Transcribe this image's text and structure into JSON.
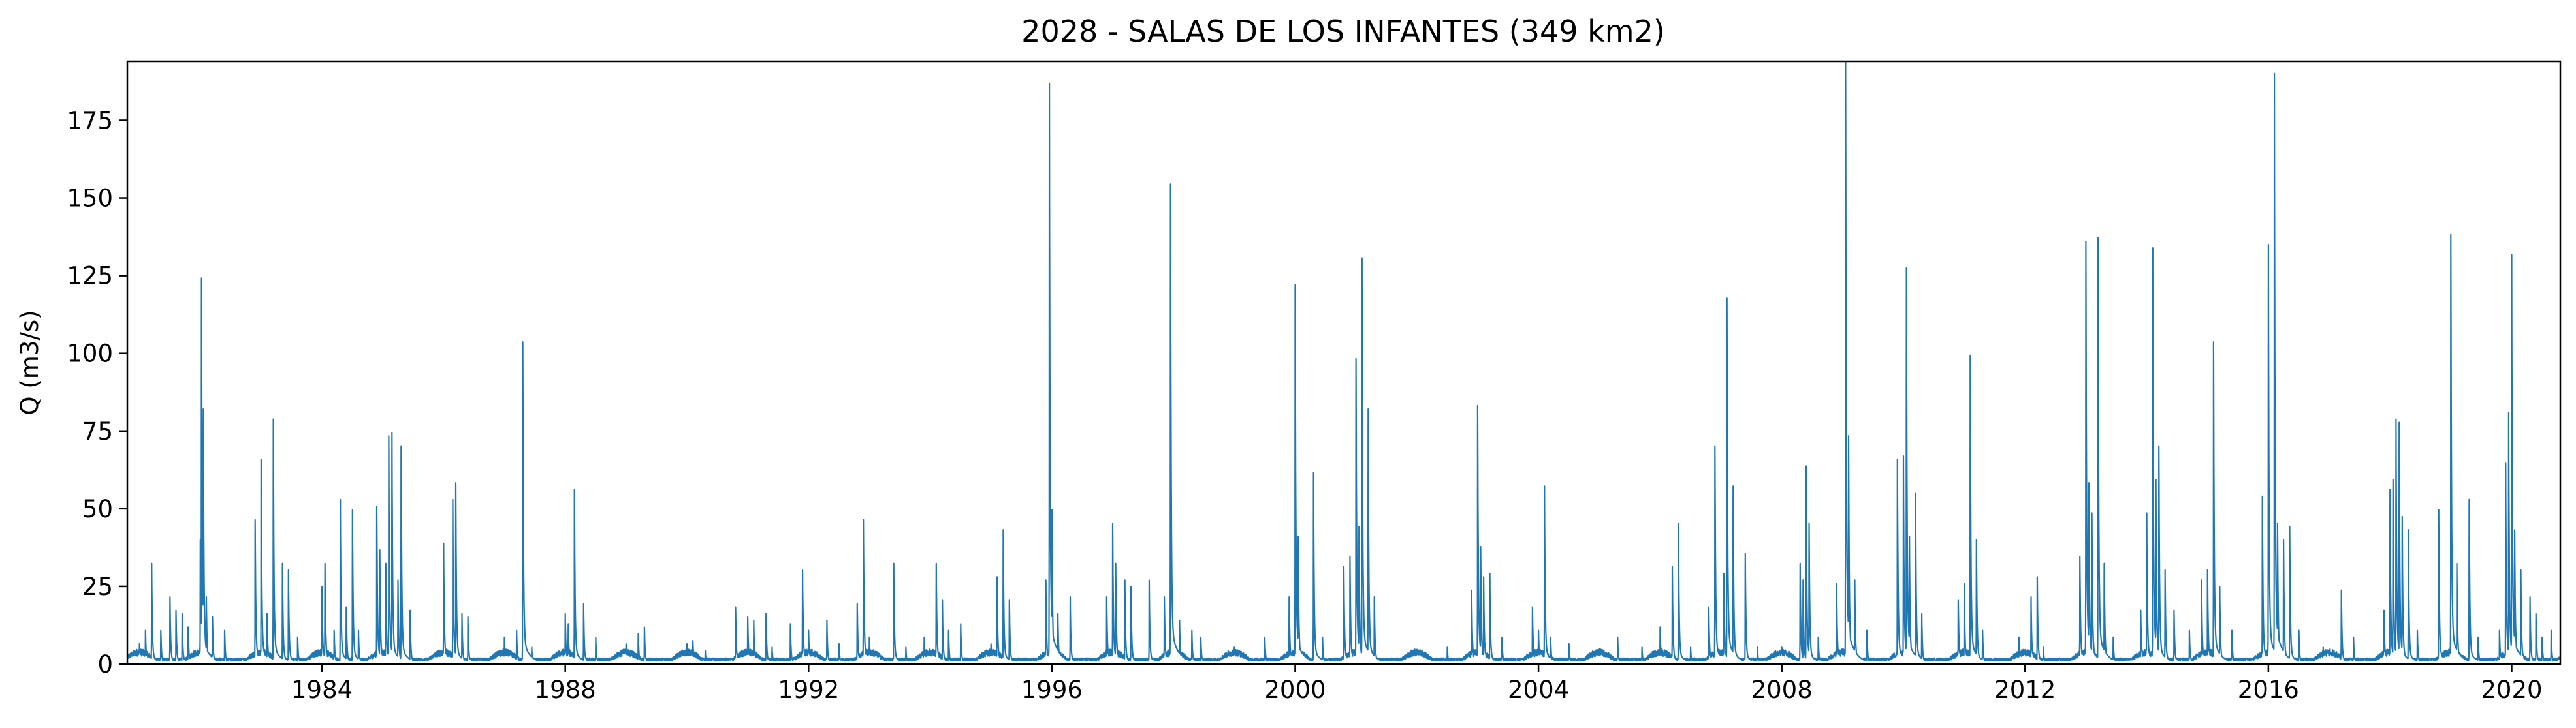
{
  "chart_data": {
    "type": "line",
    "title": "2028 - SALAS DE LOS INFANTES (349 km2)",
    "xlabel": "",
    "ylabel": "Q (m3/s)",
    "xlim": [
      1980.8,
      2020.8
    ],
    "ylim": [
      0,
      194
    ],
    "xticks": [
      1984,
      1988,
      1992,
      1996,
      2000,
      2004,
      2008,
      2012,
      2016,
      2020
    ],
    "yticks": [
      0,
      25,
      50,
      75,
      100,
      125,
      150,
      175
    ],
    "grid": false,
    "legend": "none",
    "series_color": "#1f77b4",
    "series": [
      {
        "baseflow": 1.5,
        "peaks": [
          [
            1981.0,
            6
          ],
          [
            1981.1,
            10
          ],
          [
            1981.2,
            30
          ],
          [
            1981.35,
            10
          ],
          [
            1981.5,
            20
          ],
          [
            1981.6,
            16
          ],
          [
            1981.7,
            15
          ],
          [
            1981.8,
            11
          ],
          [
            1982.0,
            37
          ],
          [
            1982.02,
            115
          ],
          [
            1982.05,
            76
          ],
          [
            1982.1,
            20
          ],
          [
            1982.2,
            14
          ],
          [
            1982.4,
            10
          ],
          [
            1982.9,
            43
          ],
          [
            1983.0,
            61
          ],
          [
            1983.1,
            15
          ],
          [
            1983.2,
            73
          ],
          [
            1983.35,
            30
          ],
          [
            1983.45,
            28
          ],
          [
            1983.6,
            8
          ],
          [
            1984.0,
            23
          ],
          [
            1984.05,
            30
          ],
          [
            1984.2,
            10
          ],
          [
            1984.3,
            49
          ],
          [
            1984.4,
            17
          ],
          [
            1984.5,
            46
          ],
          [
            1984.6,
            10
          ],
          [
            1984.9,
            47
          ],
          [
            1984.95,
            34
          ],
          [
            1985.05,
            30
          ],
          [
            1985.1,
            68
          ],
          [
            1985.15,
            69
          ],
          [
            1985.25,
            25
          ],
          [
            1985.3,
            65
          ],
          [
            1985.45,
            16
          ],
          [
            1986.0,
            36
          ],
          [
            1986.15,
            49
          ],
          [
            1986.2,
            54
          ],
          [
            1986.3,
            15
          ],
          [
            1986.4,
            14
          ],
          [
            1987.0,
            8
          ],
          [
            1987.2,
            10
          ],
          [
            1987.3,
            96
          ],
          [
            1987.45,
            5
          ],
          [
            1988.0,
            15
          ],
          [
            1988.05,
            12
          ],
          [
            1988.15,
            52
          ],
          [
            1988.3,
            18
          ],
          [
            1988.5,
            8
          ],
          [
            1989.0,
            6
          ],
          [
            1989.2,
            9
          ],
          [
            1989.3,
            11
          ],
          [
            1990.0,
            6
          ],
          [
            1990.1,
            7
          ],
          [
            1990.3,
            4
          ],
          [
            1990.8,
            17
          ],
          [
            1991.0,
            14
          ],
          [
            1991.1,
            13
          ],
          [
            1991.3,
            15
          ],
          [
            1991.4,
            5
          ],
          [
            1991.7,
            12
          ],
          [
            1991.9,
            28
          ],
          [
            1992.0,
            10
          ],
          [
            1992.3,
            13
          ],
          [
            1992.5,
            6
          ],
          [
            1992.8,
            18
          ],
          [
            1992.9,
            43
          ],
          [
            1993.0,
            8
          ],
          [
            1993.4,
            30
          ],
          [
            1993.6,
            5
          ],
          [
            1993.9,
            8
          ],
          [
            1994.1,
            30
          ],
          [
            1994.2,
            19
          ],
          [
            1994.3,
            10
          ],
          [
            1994.5,
            12
          ],
          [
            1995.0,
            6
          ],
          [
            1995.1,
            26
          ],
          [
            1995.2,
            40
          ],
          [
            1995.3,
            19
          ],
          [
            1995.9,
            25
          ],
          [
            1995.96,
            173
          ],
          [
            1996.0,
            46
          ],
          [
            1996.1,
            15
          ],
          [
            1996.3,
            20
          ],
          [
            1996.9,
            20
          ],
          [
            1997.0,
            42
          ],
          [
            1997.05,
            30
          ],
          [
            1997.2,
            25
          ],
          [
            1997.3,
            23
          ],
          [
            1997.6,
            25
          ],
          [
            1997.85,
            20
          ],
          [
            1997.95,
            143
          ],
          [
            1998.1,
            13
          ],
          [
            1998.3,
            10
          ],
          [
            1998.45,
            8
          ],
          [
            1999.0,
            5
          ],
          [
            1999.5,
            8
          ],
          [
            1999.9,
            20
          ],
          [
            2000.0,
            113
          ],
          [
            2000.05,
            38
          ],
          [
            2000.3,
            57
          ],
          [
            2000.45,
            8
          ],
          [
            2000.8,
            29
          ],
          [
            2000.9,
            32
          ],
          [
            2001.0,
            91
          ],
          [
            2001.05,
            41
          ],
          [
            2001.1,
            121
          ],
          [
            2001.2,
            76
          ],
          [
            2001.3,
            20
          ],
          [
            2002.5,
            5
          ],
          [
            2002.9,
            22
          ],
          [
            2003.0,
            77
          ],
          [
            2003.05,
            35
          ],
          [
            2003.1,
            26
          ],
          [
            2003.2,
            27
          ],
          [
            2003.4,
            8
          ],
          [
            2003.9,
            17
          ],
          [
            2004.0,
            10
          ],
          [
            2004.1,
            53
          ],
          [
            2004.2,
            8
          ],
          [
            2004.5,
            6
          ],
          [
            2005.3,
            8
          ],
          [
            2005.7,
            5
          ],
          [
            2006.0,
            11
          ],
          [
            2006.2,
            29
          ],
          [
            2006.3,
            42
          ],
          [
            2006.5,
            5
          ],
          [
            2006.8,
            17
          ],
          [
            2006.9,
            65
          ],
          [
            2007.05,
            27
          ],
          [
            2007.1,
            109
          ],
          [
            2007.2,
            53
          ],
          [
            2007.4,
            33
          ],
          [
            2007.6,
            5
          ],
          [
            2008.0,
            5
          ],
          [
            2008.3,
            30
          ],
          [
            2008.35,
            25
          ],
          [
            2008.4,
            59
          ],
          [
            2008.45,
            42
          ],
          [
            2008.6,
            8
          ],
          [
            2008.9,
            24
          ],
          [
            2009.05,
            185
          ],
          [
            2009.1,
            68
          ],
          [
            2009.2,
            25
          ],
          [
            2009.4,
            10
          ],
          [
            2009.9,
            61
          ],
          [
            2010.0,
            62
          ],
          [
            2010.05,
            118
          ],
          [
            2010.1,
            38
          ],
          [
            2010.2,
            51
          ],
          [
            2010.3,
            15
          ],
          [
            2010.9,
            19
          ],
          [
            2011.0,
            24
          ],
          [
            2011.1,
            92
          ],
          [
            2011.2,
            37
          ],
          [
            2011.3,
            10
          ],
          [
            2011.9,
            8
          ],
          [
            2012.1,
            20
          ],
          [
            2012.2,
            26
          ],
          [
            2012.3,
            5
          ],
          [
            2012.9,
            32
          ],
          [
            2013.0,
            126
          ],
          [
            2013.05,
            54
          ],
          [
            2013.1,
            45
          ],
          [
            2013.2,
            127
          ],
          [
            2013.3,
            30
          ],
          [
            2013.45,
            8
          ],
          [
            2013.9,
            16
          ],
          [
            2014.0,
            45
          ],
          [
            2014.1,
            124
          ],
          [
            2014.15,
            55
          ],
          [
            2014.2,
            65
          ],
          [
            2014.3,
            28
          ],
          [
            2014.45,
            16
          ],
          [
            2014.7,
            10
          ],
          [
            2014.9,
            25
          ],
          [
            2015.0,
            28
          ],
          [
            2015.1,
            96
          ],
          [
            2015.2,
            23
          ],
          [
            2015.4,
            10
          ],
          [
            2015.9,
            50
          ],
          [
            2016.0,
            125
          ],
          [
            2016.1,
            176
          ],
          [
            2016.15,
            42
          ],
          [
            2016.25,
            37
          ],
          [
            2016.35,
            41
          ],
          [
            2016.5,
            10
          ],
          [
            2016.9,
            5
          ],
          [
            2017.2,
            22
          ],
          [
            2017.4,
            8
          ],
          [
            2017.9,
            16
          ],
          [
            2018.0,
            52
          ],
          [
            2018.05,
            55
          ],
          [
            2018.1,
            73
          ],
          [
            2018.15,
            72
          ],
          [
            2018.2,
            44
          ],
          [
            2018.3,
            40
          ],
          [
            2018.45,
            10
          ],
          [
            2018.8,
            46
          ],
          [
            2019.0,
            128
          ],
          [
            2019.1,
            30
          ],
          [
            2019.3,
            49
          ],
          [
            2019.45,
            8
          ],
          [
            2019.8,
            10
          ],
          [
            2019.9,
            60
          ],
          [
            2019.95,
            75
          ],
          [
            2020.0,
            122
          ],
          [
            2020.05,
            40
          ],
          [
            2020.15,
            28
          ],
          [
            2020.3,
            20
          ],
          [
            2020.4,
            15
          ],
          [
            2020.5,
            8
          ],
          [
            2020.65,
            10
          ]
        ]
      }
    ]
  }
}
